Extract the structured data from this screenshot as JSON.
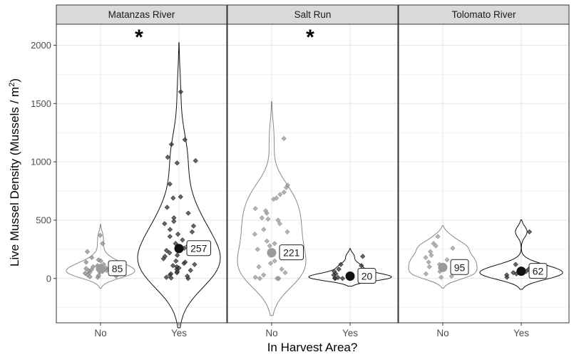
{
  "chart_data": {
    "type": "violin-scatter",
    "xlabel": "In Harvest Area?",
    "ylabel": "Live Mussel Density (Mussels / m",
    "ylabel_superscript": "2",
    "ylabel_suffix": ")",
    "categories": [
      "No",
      "Yes"
    ],
    "ylim": [
      -380,
      2180
    ],
    "yticks": [
      0,
      500,
      1000,
      1500,
      2000
    ],
    "grid": true,
    "panels": [
      {
        "name": "Matanzas River",
        "significance_marker": "*",
        "groups": [
          {
            "category": "No",
            "mean": 85,
            "mean_label": "85",
            "color": "#8c8c8c",
            "points": [
              370,
              300,
              230,
              180,
              160,
              150,
              140,
              130,
              120,
              110,
              100,
              95,
              90,
              85,
              80,
              75,
              70,
              65,
              60,
              55,
              50,
              45,
              40,
              35,
              30,
              25,
              20,
              15,
              10
            ]
          },
          {
            "category": "Yes",
            "mean": 257,
            "mean_label": "257",
            "color": "#333333",
            "points": [
              1600,
              1190,
              1150,
              1040,
              1010,
              990,
              810,
              700,
              690,
              610,
              560,
              520,
              490,
              470,
              450,
              420,
              400,
              380,
              360,
              330,
              300,
              280,
              260,
              240,
              220,
              200,
              190,
              170,
              150,
              140,
              130,
              120,
              110,
              100,
              90,
              80,
              70,
              60,
              50,
              40,
              30,
              20,
              10,
              5,
              0
            ]
          }
        ]
      },
      {
        "name": "Salt Run",
        "significance_marker": "*",
        "groups": [
          {
            "category": "No",
            "mean": 221,
            "mean_label": "221",
            "color": "#9a9a9a",
            "points": [
              1200,
              800,
              780,
              740,
              720,
              690,
              680,
              600,
              580,
              560,
              520,
              510,
              500,
              470,
              420,
              400,
              380,
              320,
              300,
              280,
              250,
              230,
              200,
              180,
              150,
              130,
              100,
              80,
              50,
              30,
              10,
              0,
              0,
              0,
              0
            ]
          },
          {
            "category": "Yes",
            "mean": 20,
            "mean_label": "20",
            "color": "#333333",
            "points": [
              190,
              120,
              110,
              80,
              60,
              40,
              30,
              20,
              15,
              10,
              8,
              5,
              3,
              0,
              0,
              0
            ]
          }
        ]
      },
      {
        "name": "Tolomato River",
        "significance_marker": "",
        "groups": [
          {
            "category": "No",
            "mean": 95,
            "mean_label": "95",
            "color": "#9a9a9a",
            "points": [
              360,
              300,
              280,
              260,
              230,
              200,
              180,
              160,
              140,
              120,
              100,
              80,
              60,
              40,
              20,
              10
            ]
          },
          {
            "category": "Yes",
            "mean": 62,
            "mean_label": "62",
            "color": "#333333",
            "points": [
              400,
              120,
              100,
              80,
              60,
              50,
              40,
              30,
              20,
              10
            ]
          }
        ]
      }
    ]
  }
}
